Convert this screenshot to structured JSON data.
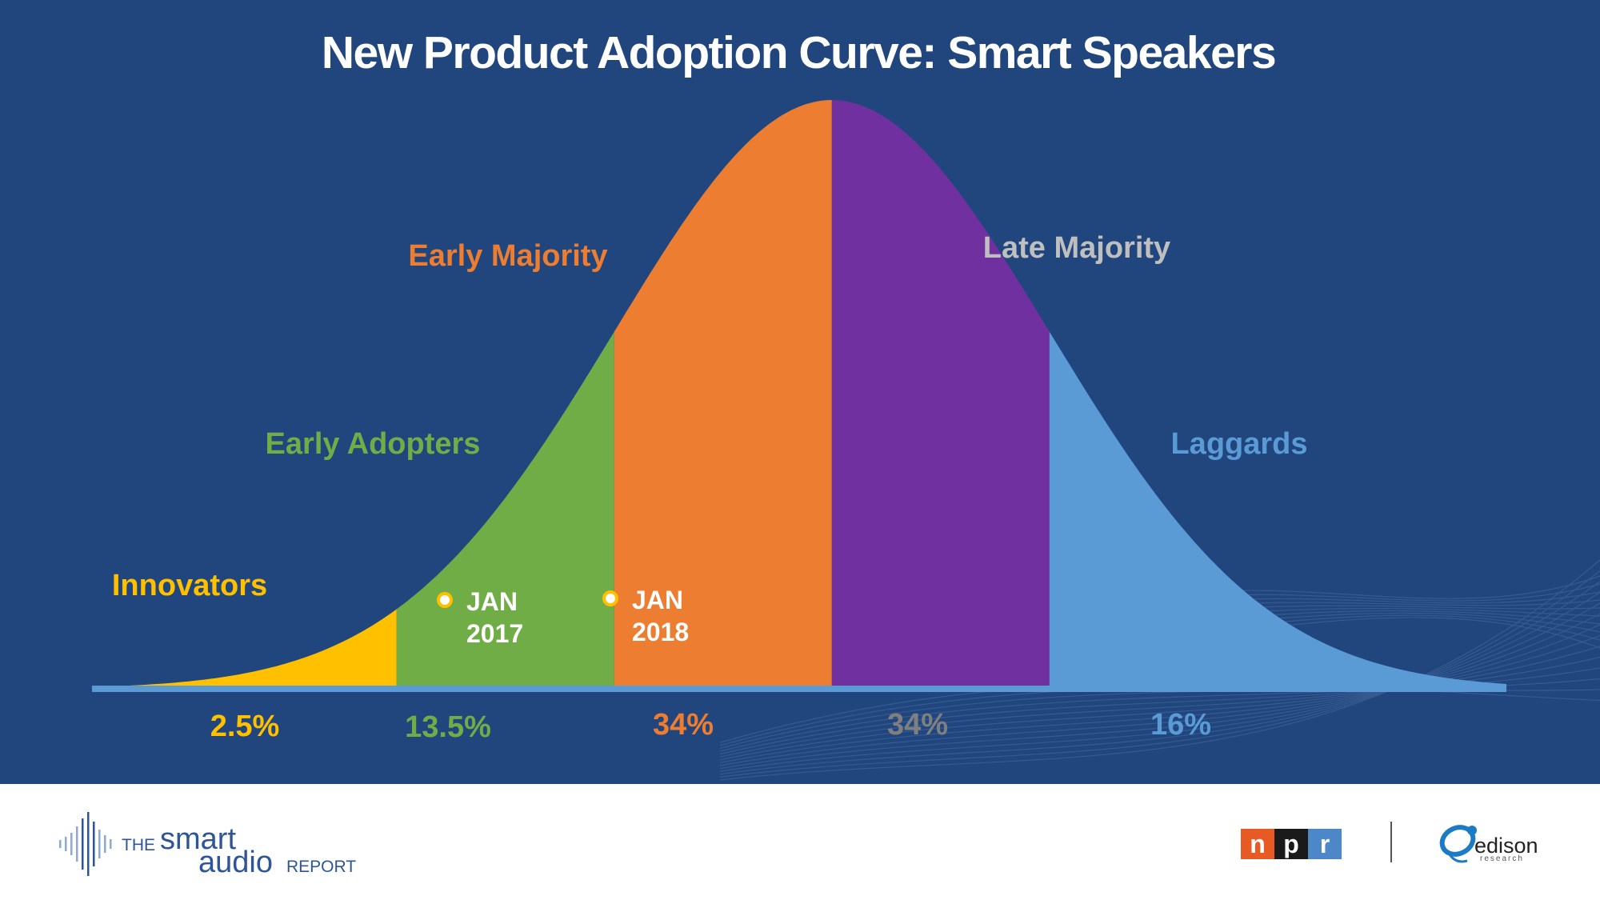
{
  "chart_data": {
    "type": "area",
    "title": "New Product Adoption Curve: Smart Speakers",
    "distribution": "normal",
    "x_range_sd": [
      -3.4,
      3.1
    ],
    "segments": [
      {
        "name": "Innovators",
        "value": 2.5,
        "label": "2.5%",
        "from_sd": -3.4,
        "to_sd": -2,
        "color": "#FFC000"
      },
      {
        "name": "Early Adopters",
        "value": 13.5,
        "label": "13.5%",
        "from_sd": -2,
        "to_sd": -1,
        "color": "#70AD47"
      },
      {
        "name": "Early Majority",
        "value": 34,
        "label": "34%",
        "from_sd": -1,
        "to_sd": 0,
        "color": "#ED7D31"
      },
      {
        "name": "Late Majority",
        "value": 34,
        "label": "34%",
        "from_sd": 0,
        "to_sd": 1,
        "color": "#7030A0"
      },
      {
        "name": "Laggards",
        "value": 16,
        "label": "16%",
        "from_sd": 1,
        "to_sd": 3.1,
        "color": "#5B9BD5"
      }
    ],
    "text_colors": {
      "Innovators": "#FFC000",
      "Early Adopters": "#70AD47",
      "Early Majority": "#ED7D31",
      "Late Majority": "#BFBFBF",
      "Laggards": "#5B9BD5",
      "pct_late_majority": "#7F7F7F"
    },
    "annotations": [
      {
        "line1": "JAN",
        "line2": "2017",
        "at_sd": -1.5
      },
      {
        "line1": "JAN",
        "line2": "2018",
        "at_sd": -0.8
      }
    ]
  },
  "footer": {
    "report_the": "THE",
    "report_smart": "smart",
    "report_audio": "audio",
    "report_report": "REPORT",
    "npr_letters": [
      "n",
      "p",
      "r"
    ],
    "edison_name": "edison",
    "edison_sub": "research"
  },
  "colors": {
    "background": "#21467E",
    "footer_bg": "#FFFFFF",
    "brand_blue": "#2E5597",
    "npr_red": "#E85A24",
    "npr_black": "#1A1A1A",
    "npr_blue": "#4C87C7",
    "edison_blue": "#1B7BC4"
  }
}
